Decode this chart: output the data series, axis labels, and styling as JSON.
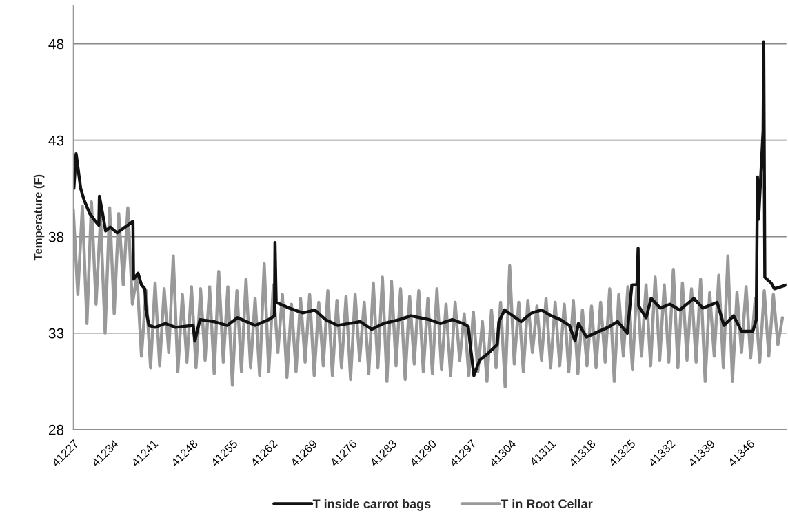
{
  "chart_data": {
    "type": "line",
    "ylabel": "Temperature (F)",
    "xlim": [
      41227,
      41352.5
    ],
    "xticks": [
      41227,
      41234,
      41241,
      41248,
      41255,
      41262,
      41269,
      41276,
      41283,
      41290,
      41297,
      41304,
      41311,
      41318,
      41325,
      41332,
      41339,
      41346
    ],
    "ylim": [
      28,
      50
    ],
    "yticks": [
      28,
      33,
      38,
      43,
      48
    ],
    "grid": "y",
    "legend": "bottom",
    "series": [
      {
        "name": "T in Root Cellar",
        "color": "#999999",
        "x": [
          41227.0,
          41227.8,
          41228.6,
          41229.4,
          41230.2,
          41231.0,
          41231.8,
          41232.6,
          41233.4,
          41234.2,
          41235.0,
          41235.8,
          41236.6,
          41237.4,
          41238.2,
          41239.0,
          41239.8,
          41240.6,
          41241.4,
          41242.2,
          41243.0,
          41243.8,
          41244.6,
          41245.4,
          41246.2,
          41247.0,
          41247.8,
          41248.6,
          41249.4,
          41250.2,
          41251.0,
          41251.8,
          41252.6,
          41253.4,
          41254.2,
          41255.0,
          41255.8,
          41256.6,
          41257.4,
          41258.2,
          41259.0,
          41259.8,
          41260.6,
          41261.4,
          41262.2,
          41263.0,
          41263.8,
          41264.6,
          41265.4,
          41266.2,
          41267.0,
          41267.8,
          41268.6,
          41269.4,
          41270.2,
          41271.0,
          41271.8,
          41272.6,
          41273.4,
          41274.2,
          41275.0,
          41275.8,
          41276.6,
          41277.4,
          41278.2,
          41279.0,
          41279.8,
          41280.6,
          41281.4,
          41282.2,
          41283.0,
          41283.8,
          41284.6,
          41285.4,
          41286.2,
          41287.0,
          41287.8,
          41288.6,
          41289.4,
          41290.2,
          41291.0,
          41291.8,
          41292.6,
          41293.4,
          41294.2,
          41295.0,
          41295.8,
          41296.6,
          41297.4,
          41298.2,
          41299.0,
          41299.8,
          41300.6,
          41301.4,
          41302.2,
          41303.0,
          41303.8,
          41304.6,
          41305.4,
          41306.2,
          41307.0,
          41307.8,
          41308.6,
          41309.4,
          41310.2,
          41311.0,
          41311.8,
          41312.6,
          41313.4,
          41314.2,
          41315.0,
          41315.8,
          41316.6,
          41317.4,
          41318.2,
          41319.0,
          41319.8,
          41320.6,
          41321.4,
          41322.2,
          41323.0,
          41323.8,
          41324.6,
          41325.4,
          41326.2,
          41327.0,
          41327.8,
          41328.6,
          41329.4,
          41330.2,
          41331.0,
          41331.8,
          41332.6,
          41333.4,
          41334.2,
          41335.0,
          41335.8,
          41336.6,
          41337.4,
          41338.2,
          41339.0,
          41339.8,
          41340.6,
          41341.4,
          41342.2,
          41343.0,
          41343.8,
          41344.6,
          41345.4,
          41346.2,
          41347.0,
          41347.8,
          41348.6,
          41349.4,
          41350.2,
          41351.0,
          41351.8
        ],
        "values": [
          39.4,
          35.0,
          39.6,
          33.5,
          39.8,
          34.5,
          39.0,
          33.0,
          39.5,
          34.0,
          39.2,
          35.5,
          39.5,
          34.5,
          36.0,
          31.8,
          35.2,
          31.2,
          35.6,
          31.3,
          35.3,
          32.0,
          37.0,
          31.0,
          35.0,
          31.5,
          35.4,
          31.2,
          35.3,
          31.6,
          35.4,
          30.9,
          36.2,
          31.5,
          35.4,
          30.3,
          35.2,
          31.0,
          35.8,
          31.2,
          34.8,
          30.8,
          36.6,
          31.0,
          35.5,
          32.0,
          35.0,
          30.7,
          34.5,
          31.0,
          34.8,
          31.5,
          35.0,
          30.8,
          34.6,
          31.3,
          35.2,
          30.8,
          34.7,
          31.2,
          34.9,
          30.6,
          35.0,
          31.6,
          34.6,
          30.9,
          35.6,
          31.2,
          35.9,
          30.5,
          35.7,
          31.3,
          35.3,
          30.6,
          34.9,
          31.4,
          35.2,
          31.0,
          34.8,
          30.9,
          35.3,
          31.1,
          34.5,
          30.8,
          34.6,
          31.6,
          34.0,
          30.8,
          34.1,
          31.0,
          33.6,
          30.5,
          34.2,
          31.2,
          34.6,
          30.2,
          36.5,
          31.4,
          34.6,
          31.0,
          34.7,
          32.0,
          34.4,
          31.6,
          34.8,
          31.2,
          34.6,
          31.3,
          34.5,
          31.0,
          34.7,
          30.9,
          34.2,
          31.3,
          34.4,
          31.2,
          34.6,
          31.5,
          35.3,
          30.5,
          35.0,
          31.8,
          35.4,
          31.1,
          35.6,
          31.8,
          35.5,
          31.3,
          35.9,
          31.6,
          35.5,
          31.5,
          36.3,
          31.2,
          35.6,
          31.6,
          35.3,
          31.5,
          35.8,
          30.5,
          35.1,
          31.8,
          36.0,
          31.2,
          37.0,
          30.5,
          35.1,
          32.0,
          35.4,
          31.7,
          34.8,
          31.5,
          35.2,
          31.8,
          35.0,
          32.4,
          33.8
        ]
      },
      {
        "name": "T inside carrot bags",
        "color": "#111111",
        "x": [
          41227.1,
          41227.5,
          41228.3,
          41228.9,
          41229.9,
          41230.9,
          41231.5,
          41231.6,
          41232.1,
          41232.7,
          41233.5,
          41234.7,
          41236.6,
          41237.5,
          41237.6,
          41238.4,
          41239.0,
          41239.6,
          41239.8,
          41240.3,
          41241.4,
          41243.2,
          41245.0,
          41248.1,
          41248.4,
          41249.3,
          41251.7,
          41254.1,
          41255.9,
          41259.0,
          41261.4,
          41262.4,
          41262.5,
          41262.7,
          41265.0,
          41267.4,
          41269.5,
          41271.4,
          41273.5,
          41277.5,
          41279.5,
          41281.6,
          41284.4,
          41286.4,
          41289.6,
          41291.6,
          41293.7,
          41295.6,
          41296.5,
          41296.9,
          41297.5,
          41298.5,
          41299.8,
          41301.6,
          41301.9,
          41302.9,
          41305.8,
          41307.7,
          41309.4,
          41311.1,
          41312.7,
          41314.3,
          41315.3,
          41315.9,
          41317.3,
          41321.1,
          41322.8,
          41324.5,
          41325.3,
          41326.2,
          41326.4,
          41326.5,
          41327.8,
          41328.7,
          41330.3,
          41332.0,
          41333.7,
          41336.2,
          41337.8,
          41340.3,
          41341.5,
          41343.2,
          41344.6,
          41346.6,
          41347.2,
          41347.4,
          41347.6,
          41348.4,
          41348.5,
          41348.7,
          41349.8,
          41350.4,
          41352.5
        ],
        "values": [
          40.5,
          42.3,
          40.5,
          39.9,
          39.2,
          38.8,
          38.6,
          40.1,
          39.3,
          38.3,
          38.5,
          38.2,
          38.6,
          38.8,
          35.8,
          36.1,
          35.5,
          35.3,
          34.2,
          33.4,
          33.3,
          33.5,
          33.3,
          33.4,
          32.6,
          33.7,
          33.6,
          33.4,
          33.8,
          33.4,
          33.7,
          33.9,
          37.7,
          34.6,
          34.3,
          34.05,
          34.2,
          33.7,
          33.4,
          33.6,
          33.2,
          33.5,
          33.7,
          33.9,
          33.7,
          33.5,
          33.7,
          33.5,
          33.35,
          32.3,
          30.8,
          31.6,
          31.9,
          32.4,
          33.6,
          34.2,
          33.6,
          34.05,
          34.2,
          33.9,
          33.7,
          33.4,
          32.6,
          33.5,
          32.8,
          33.3,
          33.6,
          33.0,
          35.5,
          35.5,
          37.4,
          34.4,
          33.8,
          34.8,
          34.3,
          34.5,
          34.2,
          34.8,
          34.3,
          34.6,
          33.4,
          33.9,
          33.1,
          33.1,
          33.7,
          41.1,
          38.9,
          43.5,
          48.1,
          35.9,
          35.6,
          35.3,
          35.5
        ]
      }
    ]
  }
}
